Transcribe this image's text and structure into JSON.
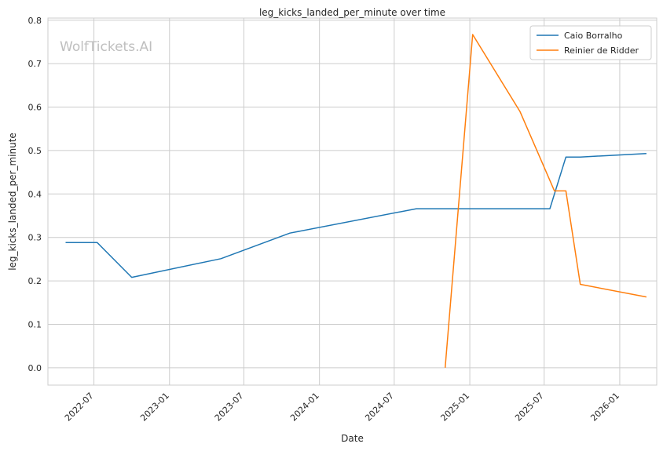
{
  "chart_data": {
    "type": "line",
    "title": "leg_kicks_landed_per_minute over time",
    "xlabel": "Date",
    "ylabel": "leg_kicks_landed_per_minute",
    "watermark": "WolfTickets.AI",
    "x_tick_labels": [
      "2022-07",
      "2023-01",
      "2023-07",
      "2024-01",
      "2024-07",
      "2025-01",
      "2025-07",
      "2026-01"
    ],
    "y_tick_labels": [
      "0.0",
      "0.1",
      "0.2",
      "0.3",
      "0.4",
      "0.5",
      "0.6",
      "0.7",
      "0.8"
    ],
    "xlim": [
      "2022-03-11",
      "2026-04-01"
    ],
    "ylim": [
      -0.04,
      0.805
    ],
    "grid": true,
    "legend_position": "top-right",
    "series": [
      {
        "name": "Caio Borralho",
        "color": "#1f77b4",
        "x": [
          "2022-04-23",
          "2022-07-09",
          "2022-10-01",
          "2023-05-06",
          "2023-10-21",
          "2024-08-24",
          "2025-07-15",
          "2025-08-23",
          "2025-09-27",
          "2026-03-07"
        ],
        "y": [
          0.288,
          0.288,
          0.208,
          0.251,
          0.31,
          0.366,
          0.366,
          0.485,
          0.485,
          0.493
        ]
      },
      {
        "name": "Reinier de Ridder",
        "color": "#ff7f0e",
        "x": [
          "2024-11-02",
          "2025-01-08",
          "2025-05-03",
          "2025-07-26",
          "2025-08-23",
          "2025-09-27",
          "2026-03-07"
        ],
        "y": [
          0.0,
          0.767,
          0.59,
          0.407,
          0.407,
          0.192,
          0.163
        ]
      }
    ]
  }
}
